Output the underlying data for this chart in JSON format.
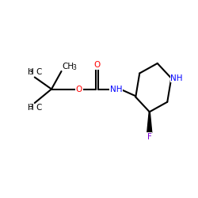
{
  "background": "#ffffff",
  "bond_color": "#000000",
  "bond_width": 1.5,
  "O_color": "#ff0000",
  "N_color": "#0000ff",
  "F_color": "#7b00d4",
  "C_color": "#000000",
  "figsize": [
    2.5,
    2.5
  ],
  "dpi": 100,
  "xlim": [
    0,
    10
  ],
  "ylim": [
    0,
    10
  ],
  "font_size_main": 7.5,
  "font_size_sub": 5.5
}
